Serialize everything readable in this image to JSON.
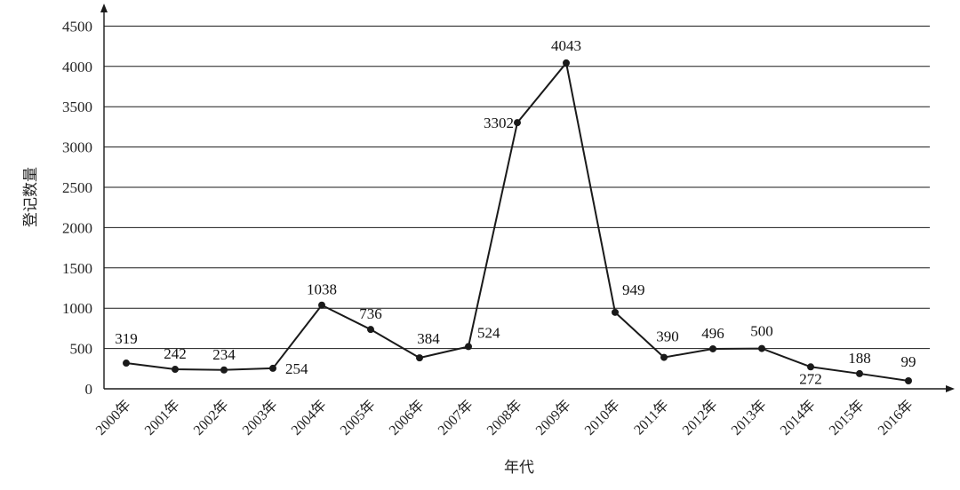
{
  "chart_data": {
    "type": "line",
    "title": "",
    "xlabel": "年代",
    "ylabel": "登记数量",
    "categories": [
      "2000年",
      "2001年",
      "2002年",
      "2003年",
      "2004年",
      "2005年",
      "2006年",
      "2007年",
      "2008年",
      "2009年",
      "2010年",
      "2011年",
      "2012年",
      "2013年",
      "2014年",
      "2015年",
      "2016年"
    ],
    "series": [
      {
        "values": [
          319,
          242,
          234,
          254,
          1038,
          736,
          384,
          524,
          3302,
          4043,
          949,
          390,
          496,
          500,
          272,
          188,
          99
        ]
      }
    ],
    "data_labels": [
      "319",
      "242",
      "234",
      "254",
      "1038",
      "736",
      "384",
      "524",
      "3302",
      "4043",
      "949",
      "390",
      "496",
      "500",
      "272",
      "188",
      "99"
    ],
    "yticks": [
      0,
      500,
      1000,
      1500,
      2000,
      2500,
      3000,
      3500,
      4000,
      4500
    ],
    "ylim": [
      0,
      4500
    ],
    "grid": true,
    "legend": "none",
    "colors": {
      "line": "#1a1a1a",
      "grid": "#1a1a1a"
    }
  }
}
